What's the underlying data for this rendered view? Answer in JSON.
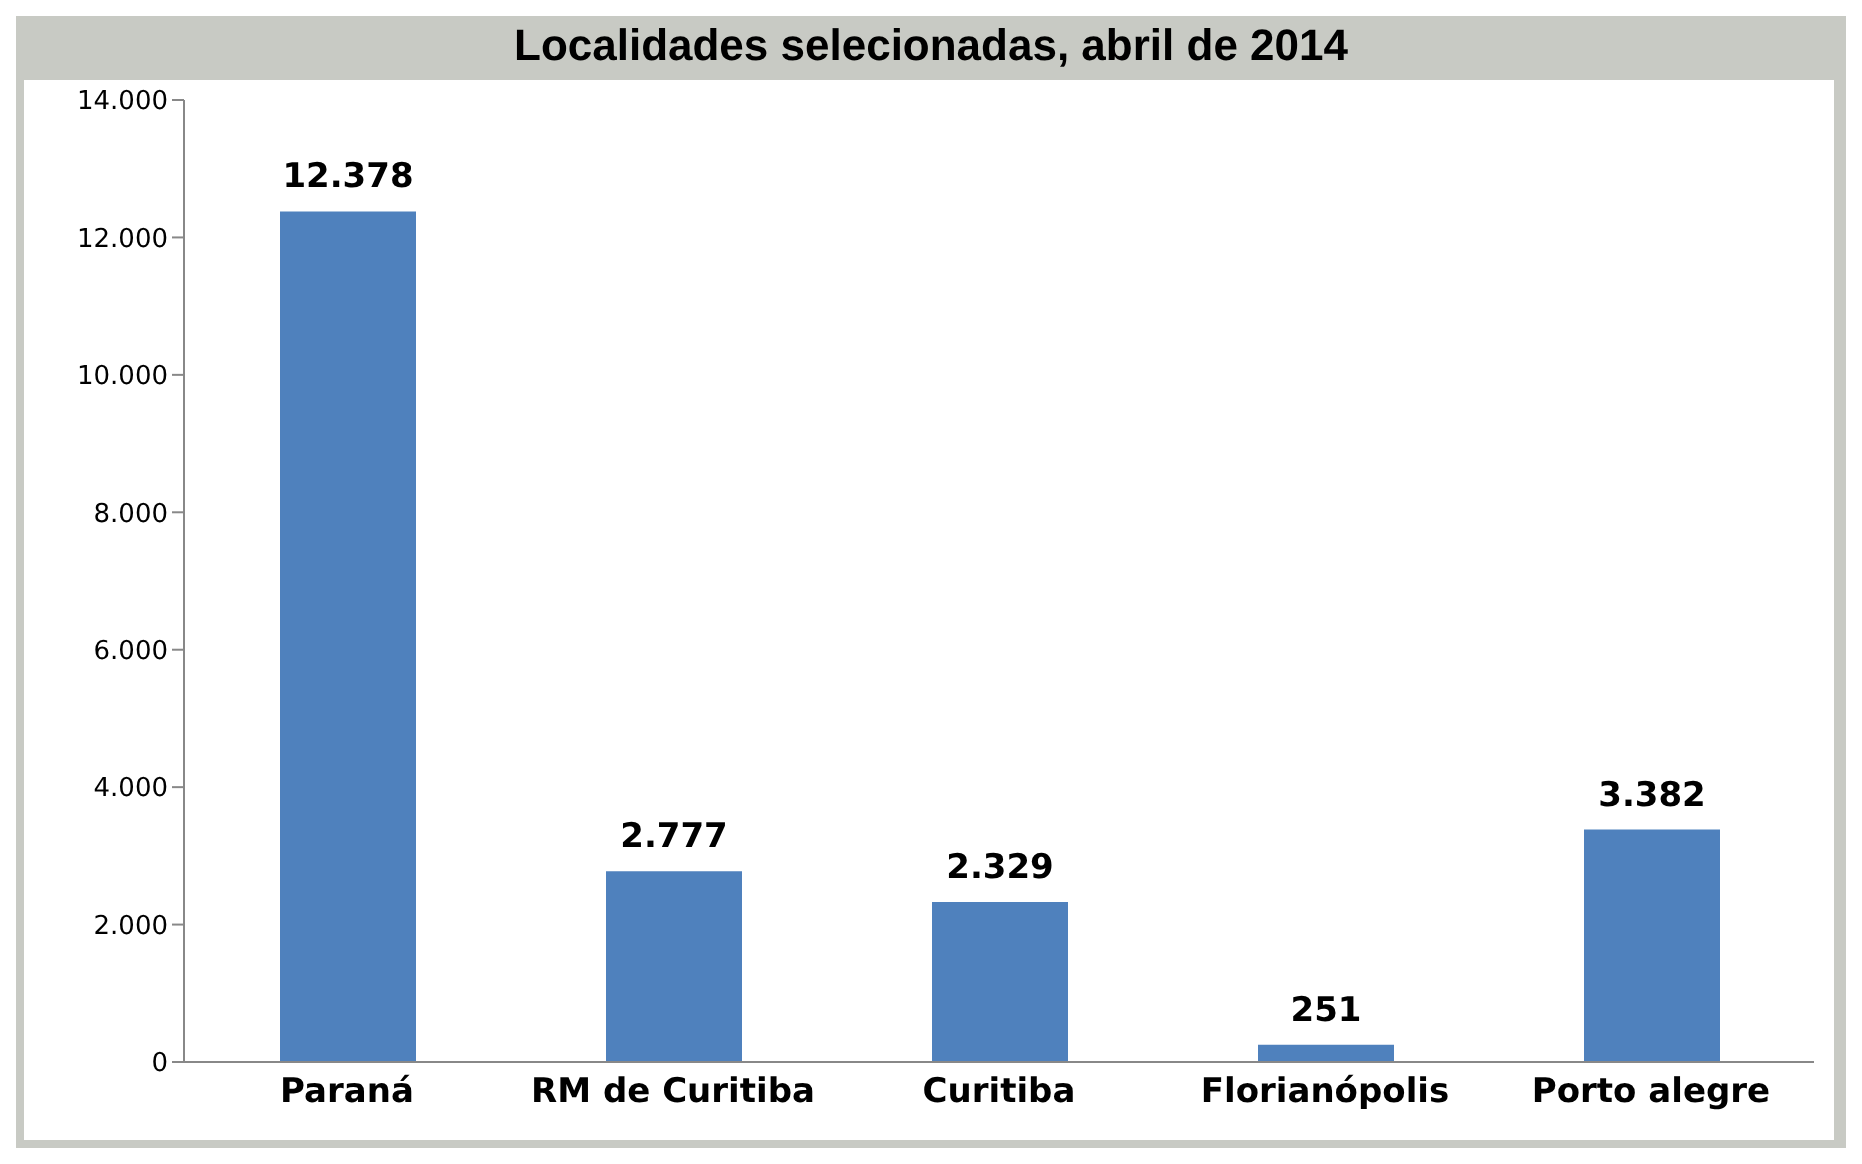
{
  "chart_data": {
    "type": "bar",
    "title": "Localidades selecionadas, abril de 2014",
    "categories": [
      "Paraná",
      "RM de Curitiba",
      "Curitiba",
      "Florianópolis",
      "Porto alegre"
    ],
    "values": [
      12378,
      2777,
      2329,
      251,
      3382
    ],
    "value_labels": [
      "12.378",
      "2.777",
      "2.329",
      "251",
      "3.382"
    ],
    "color": "#4f81bd",
    "ylim": [
      0,
      14000
    ],
    "yticks": [
      {
        "value": 0,
        "label": "0"
      },
      {
        "value": 2000,
        "label": "2.000"
      },
      {
        "value": 4000,
        "label": "4.000"
      },
      {
        "value": 6000,
        "label": "6.000"
      },
      {
        "value": 8000,
        "label": "8.000"
      },
      {
        "value": 10000,
        "label": "10.000"
      },
      {
        "value": 12000,
        "label": "12.000"
      },
      {
        "value": 14000,
        "label": "14.000"
      }
    ],
    "grid": false,
    "legend": false
  }
}
